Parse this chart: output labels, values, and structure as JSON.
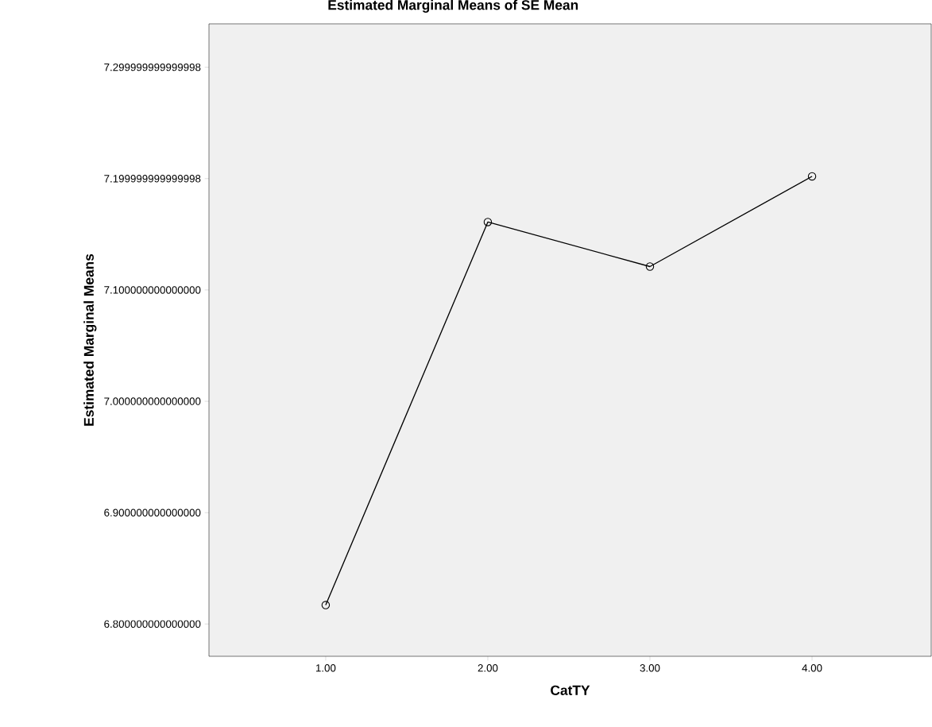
{
  "chart_data": {
    "type": "line",
    "title": "Estimated Marginal Means of SE Mean",
    "xlabel": "CatTY",
    "ylabel": "Estimated Marginal Means",
    "categories": [
      "1.00",
      "2.00",
      "3.00",
      "4.00"
    ],
    "values": [
      6.817,
      7.161,
      7.121,
      7.202
    ],
    "color": "#000000",
    "marker": "circle",
    "line_style": "solid",
    "ylim": [
      6.771,
      7.339
    ],
    "yticks": [
      {
        "value": 6.8,
        "label": "6.800000000000000"
      },
      {
        "value": 6.9,
        "label": "6.900000000000000"
      },
      {
        "value": 7.0,
        "label": "7.000000000000000"
      },
      {
        "value": 7.1,
        "label": "7.100000000000000"
      },
      {
        "value": 7.2,
        "label": "7.199999999999998"
      },
      {
        "value": 7.3,
        "label": "7.299999999999998"
      }
    ]
  }
}
